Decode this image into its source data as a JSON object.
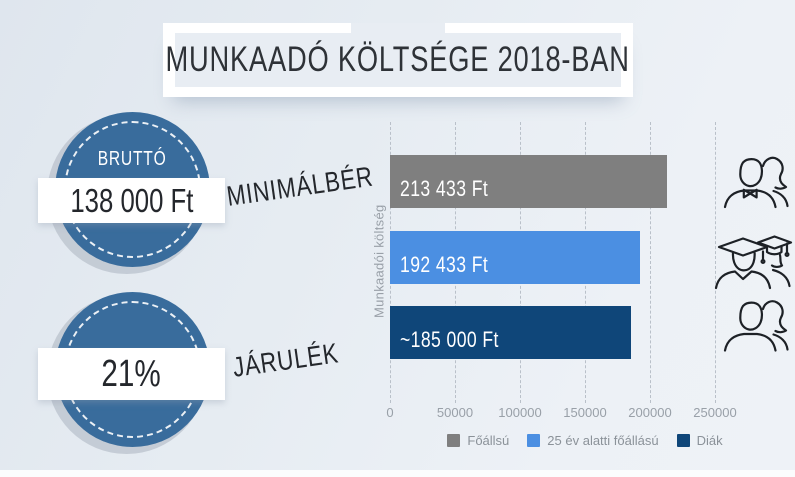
{
  "title": "MUNKAADÓ KÖLTSÉGE 2018-BAN",
  "badges": [
    {
      "caption": "BRUTTÓ",
      "value": "138 000 Ft",
      "label": "MINIMÁLBÉR"
    },
    {
      "caption": "",
      "value": "21%",
      "label": "JÁRULÉK"
    }
  ],
  "chart_data": {
    "type": "bar",
    "orientation": "horizontal",
    "title": "",
    "xlabel": "",
    "ylabel": "Munkaadói költség",
    "xlim": [
      0,
      250000
    ],
    "x_ticks": [
      0,
      50000,
      100000,
      150000,
      200000,
      250000
    ],
    "grid": "dashed-vertical",
    "legend_position": "bottom",
    "series": [
      {
        "name": "Főállsú",
        "value": 213433,
        "bar_label": "213 433 Ft",
        "color": "#7f7f7f"
      },
      {
        "name": "25 év alatti főállású",
        "value": 192433,
        "bar_label": "192 433 Ft",
        "color": "#4b8fe2"
      },
      {
        "name": "Diák",
        "value": 185000,
        "bar_label": "~185 000 Ft",
        "color": "#0f4679"
      }
    ]
  },
  "icons": [
    {
      "name": "employees-icon"
    },
    {
      "name": "graduates-icon"
    },
    {
      "name": "students-icon"
    }
  ],
  "colors": {
    "circle_blue": "#396c9c",
    "bar_gray": "#7f7f7f",
    "bar_light_blue": "#4b8fe2",
    "bar_dark_blue": "#0f4679",
    "axis_text": "#99a0a8",
    "background_light": "#e8edf3"
  }
}
